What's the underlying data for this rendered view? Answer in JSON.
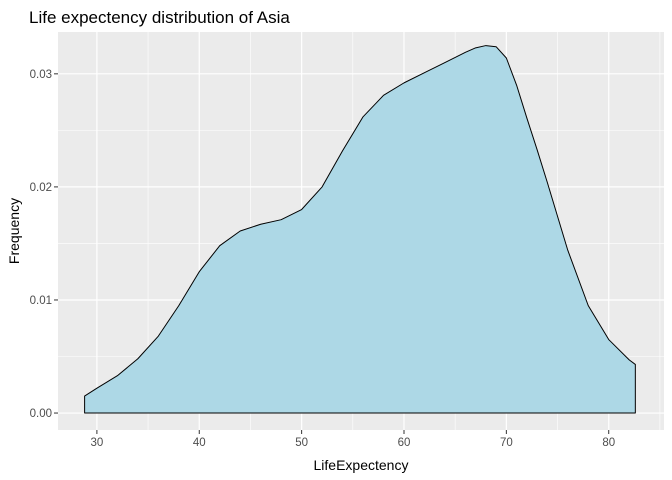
{
  "chart_data": {
    "type": "area",
    "title": "Life expectency distribution of Asia",
    "xlabel": "LifeExpectency",
    "ylabel": "Frequency",
    "xlim": [
      26.2,
      85.4
    ],
    "ylim": [
      -0.0015,
      0.0337
    ],
    "x_ticks": [
      30,
      40,
      50,
      60,
      70,
      80
    ],
    "y_ticks": [
      0.0,
      0.01,
      0.02,
      0.03
    ],
    "x_tick_labels": [
      "30",
      "40",
      "50",
      "60",
      "70",
      "80"
    ],
    "y_tick_labels": [
      "0.00",
      "0.01",
      "0.02",
      "0.03"
    ],
    "grid": true,
    "panel_color": "#ebebeb",
    "grid_color": "#ffffff",
    "fill_color": "#add8e6",
    "line_color": "#000000",
    "series": [
      {
        "x": [
          28.8,
          30,
          32,
          34,
          36,
          38,
          40,
          42,
          44,
          46,
          48,
          50,
          52,
          54,
          56,
          58,
          60,
          62,
          64,
          66,
          67,
          68,
          69,
          70,
          71,
          72,
          73,
          74,
          76,
          78,
          80,
          82,
          82.6
        ],
        "y": [
          0.0015,
          0.0022,
          0.0033,
          0.0048,
          0.0068,
          0.0095,
          0.0125,
          0.0148,
          0.0161,
          0.0167,
          0.0171,
          0.018,
          0.02,
          0.0232,
          0.0262,
          0.0281,
          0.0292,
          0.0301,
          0.031,
          0.0319,
          0.0323,
          0.0325,
          0.0324,
          0.0314,
          0.029,
          0.0261,
          0.0233,
          0.0204,
          0.0144,
          0.0095,
          0.0065,
          0.0047,
          0.0043
        ]
      }
    ]
  }
}
